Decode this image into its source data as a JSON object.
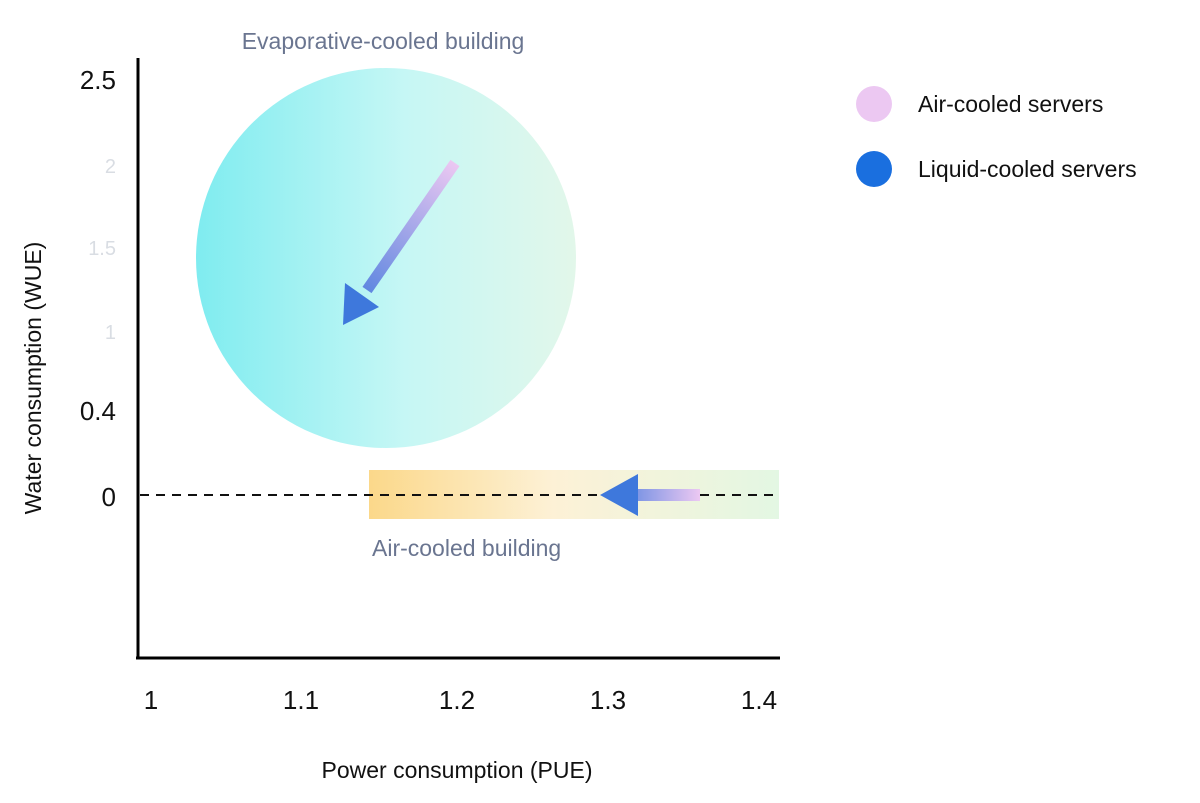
{
  "chart_data": {
    "type": "scatter",
    "title": "",
    "xlabel": "Power consumption (PUE)",
    "ylabel": "Water consumption (WUE)",
    "x_ticks": [
      "1",
      "1.1",
      "1.2",
      "1.3",
      "1.4"
    ],
    "y_ticks": [
      {
        "label": "2.5",
        "muted": false
      },
      {
        "label": "2",
        "muted": true
      },
      {
        "label": "1.5",
        "muted": true
      },
      {
        "label": "1",
        "muted": true
      },
      {
        "label": "0.4",
        "muted": false
      },
      {
        "label": "0",
        "muted": false
      }
    ],
    "xlim": [
      1.0,
      1.41
    ],
    "grid": false,
    "regions": [
      {
        "name": "Evaporative-cooled building",
        "shape": "circle",
        "colors": [
          "#7fecf0",
          "#c6f7f5",
          "#e2f7ea"
        ],
        "arrow": {
          "from_air_cooled": [
            1.2,
            2
          ],
          "to_liquid_cooled": [
            1.13,
            1.05
          ]
        }
      },
      {
        "name": "Air-cooled building",
        "shape": "band",
        "x_range": [
          1.147,
          1.41
        ],
        "y": 0,
        "colors": [
          "#fbd88a",
          "#fdf1d6",
          "#e3f7e3"
        ],
        "arrow": {
          "from_air_cooled": [
            1.36,
            0
          ],
          "to_liquid_cooled": [
            1.29,
            0
          ]
        }
      }
    ],
    "reference_line": {
      "y": 0,
      "style": "dashed"
    },
    "series": [
      {
        "name": "Air-cooled servers",
        "color": "#ecc8f2"
      },
      {
        "name": "Liquid-cooled servers",
        "color": "#1a6fdf"
      }
    ],
    "legend_position": "top-right"
  }
}
